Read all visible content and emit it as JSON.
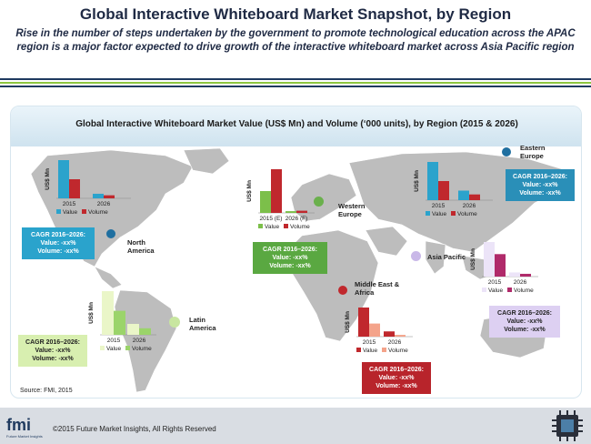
{
  "header": {
    "title": "Global Interactive Whiteboard Market Snapshot, by Region",
    "subtitle": "Rise in the number of steps undertaken by the government to promote technological education across the APAC region is a major factor expected to drive growth of the interactive whiteboard market across Asia Pacific region"
  },
  "panel": {
    "title": "Global Interactive Whiteboard Market Value (US$ Mn) and Volume (‘000 units), by Region (2015 & 2026)",
    "source": "Source: FMI, 2015"
  },
  "footer": {
    "copyright": "©2015 Future Market Insights, All Rights Reserved",
    "logo_text": "fmi",
    "logo_subtext": "Future Market Insights"
  },
  "regions": {
    "north_america": {
      "label": "North America",
      "cagr_title": "CAGR 2016–2026:",
      "cagr_value": "Value: -xx%",
      "cagr_volume": "Volume: -xx%",
      "color": "#1f8fb8"
    },
    "latin_america": {
      "label": "Latin America",
      "cagr_title": "CAGR 2016–2026:",
      "cagr_value": "Value: -xx%",
      "cagr_volume": "Volume: -xx%",
      "color": "#c8e6a0"
    },
    "western_europe": {
      "label": "Western Europe",
      "cagr_title": "CAGR 2016–2026:",
      "cagr_value": "Value: -xx%",
      "cagr_volume": "Volume: -xx%",
      "color": "#6ab04c"
    },
    "eastern_europe": {
      "label": "Eastern Europe",
      "cagr_title": "CAGR 2016–2026:",
      "cagr_value": "Value: -xx%",
      "cagr_volume": "Volume: -xx%",
      "color": "#1f8fb8"
    },
    "asia_pacific": {
      "label": "Asia Pacific",
      "cagr_title": "CAGR 2016–2026:",
      "cagr_value": "Value: -xx%",
      "cagr_volume": "Volume: -xx%",
      "color": "#c9b8e8"
    },
    "mea": {
      "label": "Middle East & Africa",
      "cagr_title": "CAGR 2016–2026:",
      "cagr_value": "Value: -xx%",
      "cagr_volume": "Volume: -xx%",
      "color": "#c0282d"
    }
  },
  "colors": {
    "stripe_dark": "#1f3a5f",
    "stripe_green": "#8cc63f",
    "map_land": "#bdbdbd",
    "map_sea": "#ffffff"
  },
  "chart_data": [
    {
      "type": "bar",
      "region": "North America",
      "ylabel": "US$ Mn",
      "categories": [
        "2015",
        "2026"
      ],
      "series": [
        {
          "name": "Value",
          "values": [
            100,
            12
          ]
        },
        {
          "name": "Volume",
          "values": [
            50,
            8
          ]
        }
      ],
      "colors": [
        "#2ba3cc",
        "#c0282d"
      ]
    },
    {
      "type": "bar",
      "region": "Western Europe",
      "ylabel": "US$ Mn",
      "categories": [
        "2015 (E)",
        "2026 (F)"
      ],
      "series": [
        {
          "name": "Value",
          "values": [
            50,
            4
          ]
        },
        {
          "name": "Volume",
          "values": [
            100,
            5
          ]
        }
      ],
      "colors": [
        "#7cbf4a",
        "#c0282d"
      ]
    },
    {
      "type": "bar",
      "region": "Eastern Europe",
      "ylabel": "US$ Mn",
      "categories": [
        "2015",
        "2026"
      ],
      "series": [
        {
          "name": "Value",
          "values": [
            100,
            25
          ]
        },
        {
          "name": "Volume",
          "values": [
            50,
            15
          ]
        }
      ],
      "colors": [
        "#2ba3cc",
        "#c0282d"
      ]
    },
    {
      "type": "bar",
      "region": "Asia Pacific",
      "ylabel": "US$ Mn",
      "categories": [
        "2015",
        "2026"
      ],
      "series": [
        {
          "name": "Value",
          "values": [
            100,
            12
          ]
        },
        {
          "name": "Volume",
          "values": [
            65,
            8
          ]
        }
      ],
      "colors": [
        "#ece4f8",
        "#b02a6a"
      ]
    },
    {
      "type": "bar",
      "region": "Latin America",
      "ylabel": "US$ Mn",
      "categories": [
        "2015",
        "2026"
      ],
      "series": [
        {
          "name": "Value",
          "values": [
            100,
            25
          ]
        },
        {
          "name": "Volume",
          "values": [
            55,
            15
          ]
        }
      ],
      "colors": [
        "#eaf6c8",
        "#9bd46a"
      ]
    },
    {
      "type": "bar",
      "region": "Middle East & Africa",
      "ylabel": "US$ Mn",
      "categories": [
        "2015",
        "2026"
      ],
      "series": [
        {
          "name": "Value",
          "values": [
            100,
            18
          ]
        },
        {
          "name": "Volume",
          "values": [
            45,
            6
          ]
        }
      ],
      "colors": [
        "#c0282d",
        "#f4a38a"
      ]
    }
  ]
}
